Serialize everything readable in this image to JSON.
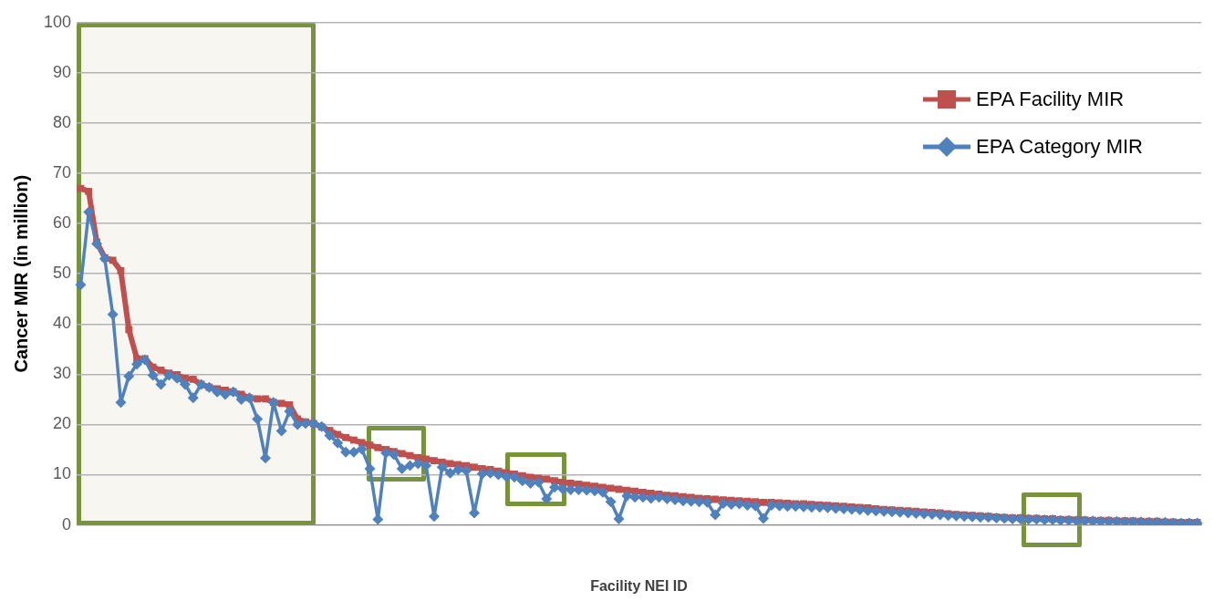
{
  "chart_data": {
    "type": "line",
    "xlabel": "Facility NEI ID",
    "ylabel": "Cancer MIR (in million)",
    "categories": [
      null,
      null,
      null,
      null,
      null,
      null,
      null,
      null,
      null,
      null,
      null,
      null,
      null,
      null,
      null,
      null,
      null,
      null,
      null,
      null,
      null,
      null,
      null,
      null,
      null,
      null,
      null,
      null,
      null,
      null,
      null,
      null,
      null,
      null,
      null,
      null,
      null,
      null,
      null,
      null,
      null,
      null,
      null,
      null,
      null,
      null,
      null,
      null,
      null,
      null,
      null,
      null,
      null,
      null,
      null,
      null,
      null,
      null,
      null,
      null,
      null,
      null,
      null,
      null,
      null,
      null,
      null,
      null,
      null,
      null,
      null,
      null,
      null,
      null,
      null,
      null,
      null,
      null,
      null,
      null,
      null,
      null,
      null,
      null,
      null,
      null,
      null,
      null,
      null,
      null,
      null,
      null,
      null,
      null,
      null,
      null,
      null,
      null,
      null,
      null,
      null,
      null,
      null,
      null,
      null,
      null,
      null,
      null,
      null,
      null,
      null,
      null,
      null,
      null,
      null,
      null,
      null,
      null,
      null,
      null,
      null,
      null,
      null,
      null,
      null,
      null,
      null,
      null,
      null,
      null,
      null,
      null,
      null,
      null,
      null,
      null,
      null,
      null,
      null,
      null
    ],
    "series": [
      {
        "name": "EPA Facility MIR",
        "color": "#c0504d",
        "marker": "square",
        "values": [
          67,
          66.4,
          56.3,
          53.2,
          52.7,
          50.6,
          38.9,
          33.1,
          33.1,
          31.4,
          30.8,
          30.2,
          29.9,
          29.2,
          29,
          28,
          27.4,
          27.1,
          26.8,
          26.5,
          26,
          25.3,
          25.1,
          25.1,
          24.4,
          24.2,
          23.9,
          21.1,
          20.5,
          20.2,
          19.5,
          18.8,
          18,
          17.4,
          16.9,
          16.4,
          15.9,
          15.4,
          15,
          14.6,
          14.2,
          13.8,
          13.4,
          13.1,
          12.8,
          12.5,
          12.2,
          12,
          11.8,
          11.5,
          11.2,
          11,
          10.7,
          10.4,
          10.1,
          9.8,
          9.5,
          9.3,
          9.1,
          8.8,
          8.5,
          8.3,
          8.1,
          7.9,
          7.7,
          7.5,
          7.3,
          7.1,
          6.9,
          6.7,
          6.5,
          6.3,
          6.1,
          5.9,
          5.8,
          5.6,
          5.5,
          5.3,
          5.2,
          5.1,
          5,
          4.9,
          4.8,
          4.7,
          4.6,
          4.5,
          4.5,
          4.4,
          4.3,
          4.2,
          4.2,
          4.1,
          4,
          3.9,
          3.8,
          3.7,
          3.6,
          3.5,
          3.4,
          3.2,
          3.1,
          3,
          2.9,
          2.8,
          2.7,
          2.6,
          2.5,
          2.4,
          2.2,
          2.1,
          2,
          1.9,
          1.8,
          1.7,
          1.6,
          1.5,
          1.4,
          1.4,
          1.3,
          1.3,
          1.2,
          1.2,
          1.1,
          1.1,
          1,
          1,
          0.9,
          0.9,
          0.9,
          0.8,
          0.8,
          0.8,
          0.7,
          0.7,
          0.7,
          0.6,
          0.6,
          0.5,
          0.5,
          0.5
        ]
      },
      {
        "name": "EPA Category MIR",
        "color": "#4f81bd",
        "marker": "diamond",
        "values": [
          47.8,
          62.3,
          56,
          53,
          41.9,
          24.4,
          29.6,
          32,
          32.9,
          29.8,
          28,
          29.8,
          29.2,
          28,
          25.3,
          28,
          27.4,
          26.5,
          26,
          26.5,
          25,
          25.3,
          21.1,
          13.3,
          24.4,
          18.7,
          22.6,
          20,
          20.2,
          20.2,
          19.6,
          17.8,
          16.3,
          14.5,
          14.5,
          15.1,
          11.2,
          1.1,
          14.3,
          14,
          11.2,
          11.8,
          12.2,
          11.8,
          1.7,
          11.5,
          10.3,
          11,
          10.8,
          2.4,
          10.2,
          10.3,
          10,
          9.6,
          9.5,
          8.8,
          8.3,
          8.5,
          5.2,
          7.5,
          7.2,
          7,
          7,
          6.9,
          6.8,
          6.5,
          4.6,
          1.2,
          5.8,
          5.5,
          5.5,
          5.3,
          5.5,
          5.2,
          5,
          4.8,
          4.7,
          4.6,
          4.5,
          2,
          4.3,
          4.1,
          4.2,
          3.9,
          3.8,
          1.3,
          3.9,
          3.8,
          3.7,
          3.7,
          3.6,
          3.5,
          3.5,
          3.4,
          3.3,
          3.2,
          3.1,
          3,
          2.9,
          2.8,
          2.7,
          2.6,
          2.5,
          2.4,
          2.3,
          2.2,
          2.1,
          2,
          1.9,
          1.8,
          1.7,
          1.6,
          1.5,
          1.5,
          1.4,
          1.3,
          1.2,
          1.2,
          1.1,
          1.1,
          1,
          1,
          0.9,
          0.9,
          0.8,
          0.8,
          0.8,
          0.7,
          0.7,
          0.7,
          0.6,
          0.6,
          0.6,
          0.5,
          0.5,
          0.5,
          0.4,
          0.4,
          0.4,
          0.4
        ]
      }
    ],
    "ylim": [
      0,
      100
    ],
    "yticks": [
      0,
      10,
      20,
      30,
      40,
      50,
      60,
      70,
      80,
      90,
      100
    ],
    "grid": "y",
    "legend": "top right",
    "line_style": "solid"
  }
}
